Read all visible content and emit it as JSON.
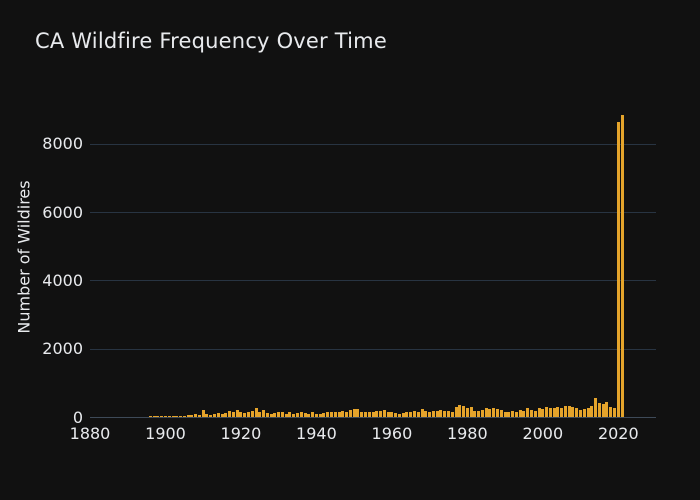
{
  "window": {
    "background_color": "#111111"
  },
  "chart_data": {
    "type": "bar",
    "title": "CA Wildfire Frequency Over Time",
    "xlabel": "",
    "ylabel": "Number of Wildires",
    "legend_position": "none",
    "grid": "horizontal",
    "bar_color": "#e5a42b",
    "grid_color": "#283442",
    "zeroline_color": "#3e4a58",
    "text_color": "#e8eaed",
    "background_color": "#111111",
    "xlim": [
      1880,
      2030
    ],
    "ylim": [
      0,
      9400
    ],
    "xticks": [
      1880,
      1900,
      1920,
      1940,
      1960,
      1980,
      2000,
      2020
    ],
    "yticks": [
      0,
      2000,
      4000,
      6000,
      8000
    ],
    "x": [
      1896,
      1897,
      1898,
      1899,
      1900,
      1901,
      1902,
      1903,
      1904,
      1905,
      1906,
      1907,
      1908,
      1909,
      1910,
      1911,
      1912,
      1913,
      1914,
      1915,
      1916,
      1917,
      1918,
      1919,
      1920,
      1921,
      1922,
      1923,
      1924,
      1925,
      1926,
      1927,
      1928,
      1929,
      1930,
      1931,
      1932,
      1933,
      1934,
      1935,
      1936,
      1937,
      1938,
      1939,
      1940,
      1941,
      1942,
      1943,
      1944,
      1945,
      1946,
      1947,
      1948,
      1949,
      1950,
      1951,
      1952,
      1953,
      1954,
      1955,
      1956,
      1957,
      1958,
      1959,
      1960,
      1961,
      1962,
      1963,
      1964,
      1965,
      1966,
      1967,
      1968,
      1969,
      1970,
      1971,
      1972,
      1973,
      1974,
      1975,
      1976,
      1977,
      1978,
      1979,
      1980,
      1981,
      1982,
      1983,
      1984,
      1985,
      1986,
      1987,
      1988,
      1989,
      1990,
      1991,
      1992,
      1993,
      1994,
      1995,
      1996,
      1997,
      1998,
      1999,
      2000,
      2001,
      2002,
      2003,
      2004,
      2005,
      2006,
      2007,
      2008,
      2009,
      2010,
      2011,
      2012,
      2013,
      2014,
      2015,
      2016,
      2017,
      2018,
      2019,
      2020,
      2021
    ],
    "values": [
      15,
      20,
      12,
      8,
      10,
      15,
      20,
      30,
      35,
      40,
      50,
      45,
      80,
      60,
      200,
      80,
      65,
      100,
      120,
      100,
      120,
      175,
      140,
      215,
      160,
      120,
      140,
      175,
      255,
      140,
      195,
      120,
      100,
      120,
      140,
      160,
      80,
      135,
      100,
      120,
      155,
      120,
      100,
      160,
      100,
      80,
      120,
      140,
      135,
      160,
      155,
      175,
      140,
      195,
      220,
      230,
      160,
      150,
      160,
      140,
      170,
      180,
      200,
      160,
      140,
      120,
      100,
      120,
      140,
      160,
      180,
      150,
      220,
      180,
      160,
      170,
      190,
      200,
      180,
      170,
      160,
      300,
      350,
      330,
      250,
      280,
      180,
      190,
      210,
      270,
      220,
      250,
      240,
      200,
      160,
      140,
      170,
      150,
      200,
      180,
      270,
      200,
      180,
      250,
      240,
      290,
      260,
      250,
      280,
      250,
      320,
      330,
      300,
      250,
      200,
      240,
      270,
      330,
      550,
      400,
      380,
      440,
      290,
      250,
      8650,
      8850
    ]
  }
}
